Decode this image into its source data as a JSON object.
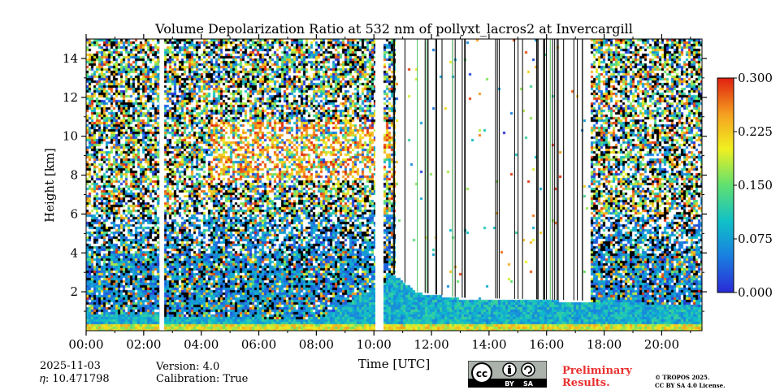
{
  "chart_data": {
    "type": "heatmap",
    "title": "Volume Depolarization Ratio at 532 nm of pollyxt_lacros2 at Invercargill",
    "xlabel": "Time [UTC]",
    "ylabel": "Height [km]",
    "x_range_hours": [
      0,
      21.4
    ],
    "x_ticks": [
      "00:00",
      "02:00",
      "04:00",
      "06:00",
      "08:00",
      "10:00",
      "12:00",
      "14:00",
      "16:00",
      "18:00",
      "20:00"
    ],
    "x_tick_hours": [
      0,
      2,
      4,
      6,
      8,
      10,
      12,
      14,
      16,
      18,
      20
    ],
    "y_range_km": [
      0,
      15
    ],
    "y_ticks": [
      "2",
      "4",
      "6",
      "8",
      "10",
      "12",
      "14"
    ],
    "y_tick_values": [
      2,
      4,
      6,
      8,
      10,
      12,
      14
    ],
    "colorbar": {
      "min": 0.0,
      "max": 0.3,
      "ticks": [
        "0.000",
        "0.075",
        "0.150",
        "0.225",
        "0.300"
      ],
      "tick_values": [
        0,
        0.075,
        0.15,
        0.225,
        0.3
      ],
      "colormap": [
        "#2a2ad6",
        "#1a7fe0",
        "#10c0c8",
        "#60e070",
        "#f0f020",
        "#f5a020",
        "#e02010"
      ]
    },
    "data_gaps_hours": [
      [
        2.55,
        2.7
      ],
      [
        10.05,
        10.25
      ]
    ],
    "cloud_layers": [
      {
        "start_hour": 4.3,
        "end_hour": 10.7,
        "base_km": 7.8,
        "top_km": 10.8
      }
    ],
    "boundary_layer_top_km": [
      {
        "hour": 0,
        "km": 0.9
      },
      {
        "hour": 4,
        "km": 0.8
      },
      {
        "hour": 8,
        "km": 0.6
      },
      {
        "hour": 10.7,
        "km": 2.9
      },
      {
        "hour": 11.5,
        "km": 2.0
      },
      {
        "hour": 13,
        "km": 1.7
      },
      {
        "hour": 16,
        "km": 1.6
      },
      {
        "hour": 19,
        "km": 1.5
      },
      {
        "hour": 21.4,
        "km": 1.3
      }
    ]
  },
  "footer": {
    "date": "2025-11-03",
    "eta": "𝜂: 10.471798",
    "version": "Version: 4.0",
    "calibration": "Calibration: True",
    "preliminary_line1": "Preliminary",
    "preliminary_line2": "Results.",
    "license_line1": "© TROPOS 2025.",
    "license_line2": "CC BY SA 4.0 License.",
    "cc_text": "cc",
    "by_text": "BY",
    "sa_text": "SA"
  }
}
